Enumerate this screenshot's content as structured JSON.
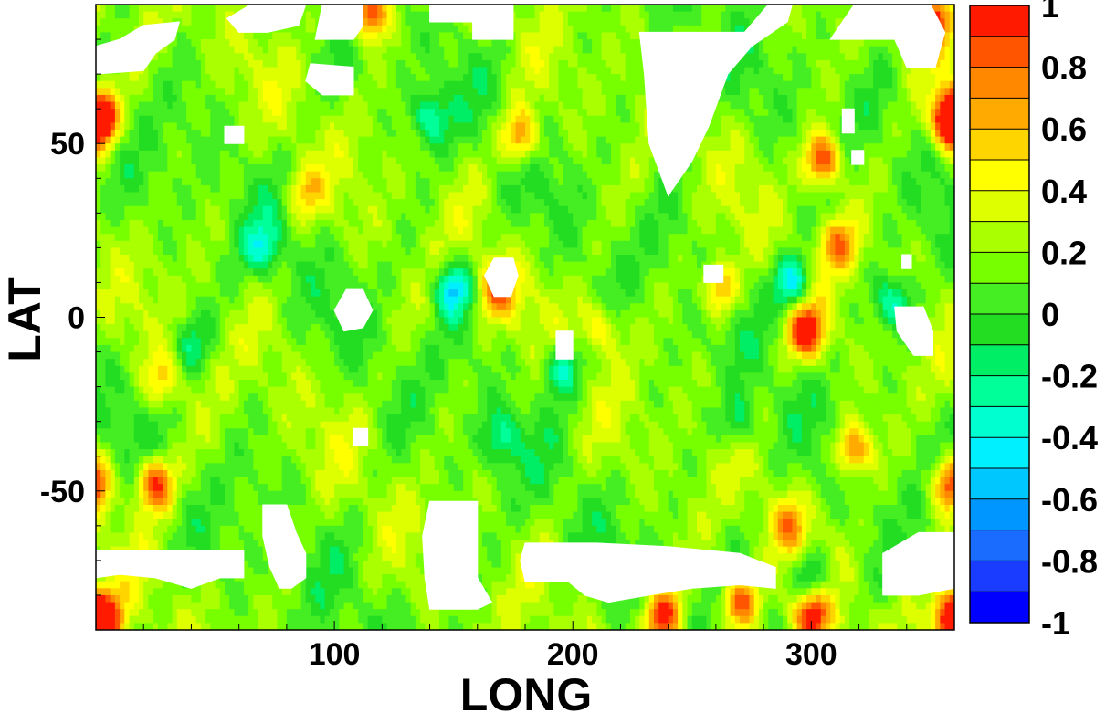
{
  "chart_data": {
    "type": "heatmap",
    "xlabel": "LONG",
    "ylabel": "LAT",
    "xlim": [
      0,
      360
    ],
    "ylim": [
      -90,
      90
    ],
    "xticks": [
      100,
      200,
      300
    ],
    "yticks": [
      -50,
      0,
      50
    ],
    "colorbar": {
      "range": [
        -1,
        1
      ],
      "step": 0.1,
      "tick_labels": [
        "1",
        "0.8",
        "0.6",
        "0.4",
        "0.2",
        "0",
        "-0.2",
        "-0.4",
        "-0.6",
        "-0.8",
        "-1"
      ],
      "colors": [
        "#0000ff",
        "#1a3cff",
        "#1a6cff",
        "#0096ff",
        "#00c8ff",
        "#00f0ff",
        "#00ffd0",
        "#00ff99",
        "#00ee66",
        "#22dd22",
        "#44ee22",
        "#77ff00",
        "#aaff00",
        "#ddff00",
        "#ffff00",
        "#ffd500",
        "#ffaa00",
        "#ff8800",
        "#ff5500",
        "#ff1a00"
      ]
    },
    "field": {
      "description_values": "Scattered anomaly values mostly between -0.2 and 0.4 with hot spots near 1.0 and cold spots near -0.5",
      "background_value": 0.15,
      "hotspots": [
        {
          "lon": 25,
          "lat": -48,
          "value": 1.0
        },
        {
          "lon": 305,
          "lat": 45,
          "value": 1.0
        },
        {
          "lon": 298,
          "lat": -4,
          "value": 1.0
        },
        {
          "lon": 2,
          "lat": 57,
          "value": 0.95
        },
        {
          "lon": 358,
          "lat": 57,
          "value": 0.95
        },
        {
          "lon": 358,
          "lat": -48,
          "value": 0.95
        },
        {
          "lon": 350,
          "lat": 85,
          "value": 1.0
        },
        {
          "lon": 115,
          "lat": 88,
          "value": 1.0
        },
        {
          "lon": 178,
          "lat": 52,
          "value": 0.8
        },
        {
          "lon": 318,
          "lat": -38,
          "value": 0.8
        },
        {
          "lon": 312,
          "lat": 21,
          "value": 0.7
        },
        {
          "lon": 300,
          "lat": -86,
          "value": 1.0
        },
        {
          "lon": 270,
          "lat": -82,
          "value": 0.9
        },
        {
          "lon": 238,
          "lat": -86,
          "value": 1.0
        },
        {
          "lon": 168,
          "lat": 8,
          "value": 0.8
        },
        {
          "lon": 262,
          "lat": 8,
          "value": 0.7
        },
        {
          "lon": 28,
          "lat": -18,
          "value": 0.55
        },
        {
          "lon": 212,
          "lat": -3,
          "value": 0.55
        },
        {
          "lon": 88,
          "lat": 36,
          "value": 0.5
        },
        {
          "lon": 290,
          "lat": -60,
          "value": 0.6
        },
        {
          "lon": 4,
          "lat": -87,
          "value": 0.9
        },
        {
          "lon": 358,
          "lat": -87,
          "value": 0.9
        }
      ],
      "coldspots": [
        {
          "lon": 150,
          "lat": 8,
          "value": -0.5
        },
        {
          "lon": 292,
          "lat": 10,
          "value": -0.5
        },
        {
          "lon": 195,
          "lat": -15,
          "value": -0.4
        },
        {
          "lon": 140,
          "lat": 57,
          "value": -0.3
        },
        {
          "lon": 335,
          "lat": 4,
          "value": -0.35
        },
        {
          "lon": 70,
          "lat": 20,
          "value": -0.25
        },
        {
          "lon": 170,
          "lat": -35,
          "value": -0.2
        },
        {
          "lon": 270,
          "lat": -30,
          "value": -0.2
        },
        {
          "lon": 300,
          "lat": -75,
          "value": -0.35
        },
        {
          "lon": 40,
          "lat": -8,
          "value": -0.15
        }
      ]
    },
    "masked_regions": [
      [
        [
          0,
          70
        ],
        [
          20,
          71
        ],
        [
          25,
          76
        ],
        [
          33,
          80
        ],
        [
          35,
          85
        ],
        [
          20,
          84
        ],
        [
          10,
          80
        ],
        [
          0,
          78
        ]
      ],
      [
        [
          55,
          86
        ],
        [
          65,
          90
        ],
        [
          88,
          90
        ],
        [
          85,
          84
        ],
        [
          72,
          82
        ],
        [
          60,
          82
        ]
      ],
      [
        [
          92,
          80
        ],
        [
          108,
          80
        ],
        [
          112,
          84
        ],
        [
          112,
          90
        ],
        [
          95,
          90
        ]
      ],
      [
        [
          90,
          73
        ],
        [
          108,
          72
        ],
        [
          108,
          64
        ],
        [
          95,
          64
        ],
        [
          88,
          68
        ]
      ],
      [
        [
          140,
          85
        ],
        [
          158,
          85
        ],
        [
          158,
          90
        ],
        [
          140,
          90
        ]
      ],
      [
        [
          158,
          80
        ],
        [
          175,
          80
        ],
        [
          175,
          90
        ],
        [
          158,
          90
        ]
      ],
      [
        [
          228,
          82
        ],
        [
          272,
          82
        ],
        [
          282,
          90
        ],
        [
          292,
          90
        ],
        [
          290,
          85
        ],
        [
          275,
          78
        ],
        [
          265,
          70
        ],
        [
          257,
          55
        ],
        [
          250,
          45
        ],
        [
          240,
          35
        ],
        [
          232,
          50
        ],
        [
          230,
          70
        ]
      ],
      [
        [
          308,
          80
        ],
        [
          335,
          80
        ],
        [
          340,
          72
        ],
        [
          352,
          72
        ],
        [
          356,
          82
        ],
        [
          350,
          90
        ],
        [
          318,
          90
        ]
      ],
      [
        [
          313,
          60
        ],
        [
          318,
          60
        ],
        [
          318,
          53
        ],
        [
          313,
          53
        ]
      ],
      [
        [
          317,
          48
        ],
        [
          322,
          48
        ],
        [
          322,
          44
        ],
        [
          317,
          44
        ]
      ],
      [
        [
          54,
          55
        ],
        [
          62,
          55
        ],
        [
          62,
          50
        ],
        [
          54,
          50
        ]
      ],
      [
        [
          105,
          8
        ],
        [
          112,
          8
        ],
        [
          116,
          2
        ],
        [
          112,
          -3
        ],
        [
          104,
          -4
        ],
        [
          100,
          2
        ]
      ],
      [
        [
          167,
          17
        ],
        [
          175,
          17
        ],
        [
          177,
          12
        ],
        [
          174,
          6
        ],
        [
          167,
          6
        ],
        [
          163,
          12
        ]
      ],
      [
        [
          255,
          15
        ],
        [
          263,
          15
        ],
        [
          263,
          10
        ],
        [
          255,
          10
        ]
      ],
      [
        [
          193,
          -4
        ],
        [
          200,
          -4
        ],
        [
          200,
          -12
        ],
        [
          193,
          -12
        ]
      ],
      [
        [
          338,
          18
        ],
        [
          342,
          18
        ],
        [
          342,
          14
        ],
        [
          338,
          14
        ]
      ],
      [
        [
          335,
          3
        ],
        [
          347,
          3
        ],
        [
          351,
          -4
        ],
        [
          351,
          -11
        ],
        [
          343,
          -11
        ],
        [
          336,
          -4
        ]
      ],
      [
        [
          108,
          -32
        ],
        [
          114,
          -32
        ],
        [
          114,
          -37
        ],
        [
          108,
          -37
        ]
      ],
      [
        [
          70,
          -54
        ],
        [
          80,
          -54
        ],
        [
          84,
          -62
        ],
        [
          88,
          -68
        ],
        [
          88,
          -75
        ],
        [
          82,
          -78
        ],
        [
          77,
          -78
        ],
        [
          73,
          -72
        ],
        [
          70,
          -63
        ]
      ],
      [
        [
          140,
          -53
        ],
        [
          160,
          -53
        ],
        [
          160,
          -75
        ],
        [
          166,
          -82
        ],
        [
          160,
          -84
        ],
        [
          140,
          -84
        ],
        [
          138,
          -75
        ],
        [
          137,
          -63
        ]
      ],
      [
        [
          0,
          -67
        ],
        [
          62,
          -67
        ],
        [
          62,
          -75
        ],
        [
          52,
          -75
        ],
        [
          40,
          -78
        ],
        [
          25,
          -75
        ],
        [
          10,
          -74
        ],
        [
          0,
          -75
        ]
      ],
      [
        [
          180,
          -65
        ],
        [
          210,
          -65
        ],
        [
          240,
          -66
        ],
        [
          270,
          -68
        ],
        [
          285,
          -72
        ],
        [
          285,
          -78
        ],
        [
          270,
          -77
        ],
        [
          250,
          -78
        ],
        [
          232,
          -80
        ],
        [
          215,
          -82
        ],
        [
          205,
          -80
        ],
        [
          198,
          -76
        ],
        [
          180,
          -76
        ],
        [
          178,
          -70
        ]
      ],
      [
        [
          330,
          -68
        ],
        [
          345,
          -62
        ],
        [
          360,
          -62
        ],
        [
          360,
          -78
        ],
        [
          345,
          -80
        ],
        [
          330,
          -80
        ]
      ]
    ]
  }
}
